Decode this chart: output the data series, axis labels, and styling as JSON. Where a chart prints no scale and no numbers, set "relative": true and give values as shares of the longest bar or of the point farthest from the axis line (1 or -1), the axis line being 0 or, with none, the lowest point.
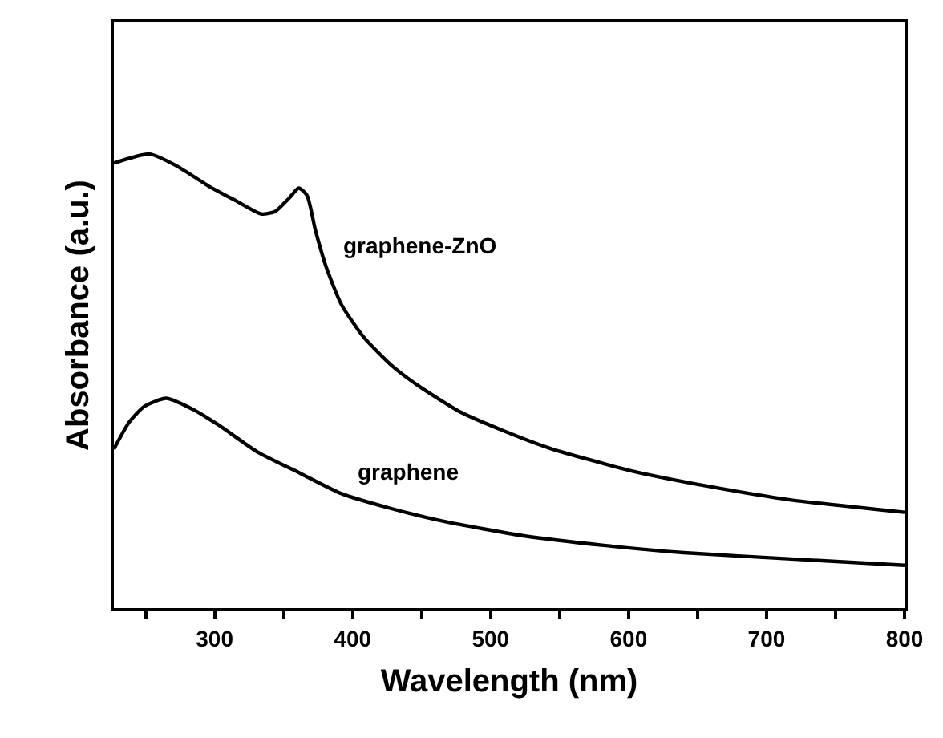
{
  "chart_data": {
    "type": "line",
    "xlabel": "Wavelength (nm)",
    "ylabel": "Absorbance (a.u.)",
    "relative": true,
    "xlim": [
      227,
      800
    ],
    "xticks": [
      {
        "value": 250,
        "label": null
      },
      300,
      {
        "value": 350,
        "label": null
      },
      400,
      {
        "value": 450,
        "label": null
      },
      500,
      {
        "value": 550,
        "label": null
      },
      600,
      {
        "value": 650,
        "label": null
      },
      700,
      {
        "value": 750,
        "label": null
      },
      800
    ],
    "tick_labels": "x",
    "legend": false,
    "marker": "none",
    "line_style": "solid",
    "series": [
      {
        "name": "graphene-ZnO",
        "color": "#000000",
        "x": [
          227,
          253,
          272.5,
          296,
          315,
          334,
          344,
          354,
          361,
          367,
          373,
          381,
          392,
          408,
          427,
          447,
          478,
          509,
          543,
          601,
          660,
          718,
          800
        ],
        "values": [
          0.98,
          1.0,
          0.974,
          0.929,
          0.898,
          0.868,
          0.874,
          0.903,
          0.925,
          0.909,
          0.833,
          0.75,
          0.668,
          0.597,
          0.538,
          0.491,
          0.432,
          0.391,
          0.352,
          0.303,
          0.267,
          0.238,
          0.211
        ]
      },
      {
        "name": "graphene",
        "color": "#000000",
        "x": [
          227,
          238,
          249,
          265,
          284,
          303,
          331,
          362,
          392,
          427,
          466,
          524,
          582,
          640,
          718,
          800
        ],
        "values": [
          0.35,
          0.409,
          0.444,
          0.462,
          0.438,
          0.403,
          0.344,
          0.297,
          0.252,
          0.22,
          0.191,
          0.159,
          0.138,
          0.122,
          0.108,
          0.094
        ]
      }
    ]
  }
}
